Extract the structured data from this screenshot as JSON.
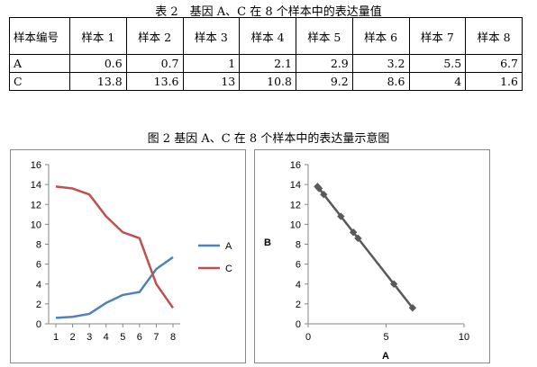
{
  "table": {
    "title": "表 2　基因 A、C 在 8 个样本中的表达量值",
    "header": [
      "样本编号",
      "样本 1",
      "样本 2",
      "样本 3",
      "样本 4",
      "样本 5",
      "样本 6",
      "样本 7",
      "样本 8"
    ],
    "rows": [
      {
        "label": "A",
        "values": [
          "0.6",
          "0.7",
          "1",
          "2.1",
          "2.9",
          "3.2",
          "5.5",
          "6.7"
        ]
      },
      {
        "label": "C",
        "values": [
          "13.8",
          "13.6",
          "13",
          "10.8",
          "9.2",
          "8.6",
          "4",
          "1.6"
        ]
      }
    ]
  },
  "figure": {
    "title": "图 2 基因 A、C 在 8 个样本中的表达量示意图"
  },
  "chart_data": [
    {
      "type": "line",
      "title": "",
      "xlabel": "",
      "ylabel": "",
      "x": [
        1,
        2,
        3,
        4,
        5,
        6,
        7,
        8
      ],
      "xticks": [
        "1",
        "2",
        "3",
        "4",
        "5",
        "6",
        "7",
        "8"
      ],
      "ylim": [
        0,
        16
      ],
      "yticks": [
        "0",
        "2",
        "4",
        "6",
        "8",
        "10",
        "12",
        "14",
        "16"
      ],
      "grid": false,
      "legend": "right",
      "series": [
        {
          "name": "A",
          "color": "#4f81bd",
          "values": [
            0.6,
            0.7,
            1,
            2.1,
            2.9,
            3.2,
            5.5,
            6.7
          ]
        },
        {
          "name": "C",
          "color": "#c0504d",
          "values": [
            13.8,
            13.6,
            13,
            10.8,
            9.2,
            8.6,
            4,
            1.6
          ]
        }
      ]
    },
    {
      "type": "scatter",
      "title": "",
      "xlabel": "A",
      "ylabel": "B",
      "xlim": [
        0,
        10
      ],
      "xticks": [
        "0",
        "5",
        "10"
      ],
      "ylim": [
        0,
        16
      ],
      "yticks": [
        "0",
        "2",
        "4",
        "6",
        "8",
        "10",
        "12",
        "14",
        "16"
      ],
      "grid": false,
      "marker_color": "#595959",
      "line_color": "#595959",
      "points": [
        {
          "x": 0.6,
          "y": 13.8
        },
        {
          "x": 0.7,
          "y": 13.6
        },
        {
          "x": 1,
          "y": 13
        },
        {
          "x": 2.1,
          "y": 10.8
        },
        {
          "x": 2.9,
          "y": 9.2
        },
        {
          "x": 3.2,
          "y": 8.6
        },
        {
          "x": 5.5,
          "y": 4
        },
        {
          "x": 6.7,
          "y": 1.6
        }
      ]
    }
  ]
}
